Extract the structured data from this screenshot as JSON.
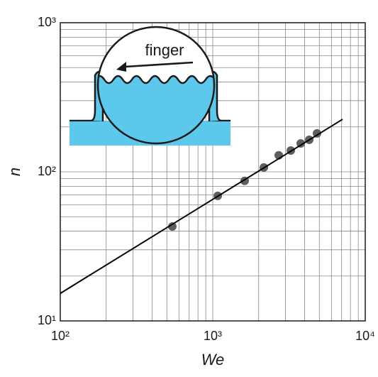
{
  "chart_data": {
    "type": "scatter",
    "x_label": "We",
    "y_label": "n",
    "annotations": [
      "finger"
    ],
    "log_x": true,
    "log_y": true,
    "grid": true,
    "xlim": [
      100,
      10000
    ],
    "xticks": [
      {
        "value": 100,
        "label": "10²"
      },
      {
        "value": 1000,
        "label": "10³"
      },
      {
        "value": 10000,
        "label": "10⁴"
      }
    ],
    "xminorticks": [
      200,
      300,
      400,
      500,
      600,
      700,
      800,
      900,
      2000,
      3000,
      4000,
      5000,
      6000,
      7000,
      8000,
      9000
    ],
    "ylim": [
      10,
      1000
    ],
    "yticks": [
      {
        "value": 10,
        "label": "10¹"
      },
      {
        "value": 100,
        "label": "10²"
      },
      {
        "value": 1000,
        "label": "10³"
      }
    ],
    "yminorticks": [
      20,
      30,
      40,
      50,
      60,
      70,
      80,
      90,
      200,
      300,
      400,
      500,
      600,
      700,
      800,
      900
    ],
    "series": [
      {
        "mode": "markers",
        "color": "#5e5e5e",
        "x": [
          543,
          1078,
          1619,
          2163,
          2708,
          3250,
          3775,
          4292,
          4827
        ],
        "values": [
          43,
          69,
          87,
          107,
          129,
          139,
          155,
          164,
          181
        ]
      },
      {
        "mode": "line",
        "color": "#000000",
        "x": [
          100,
          7100
        ],
        "values": [
          15.3,
          225
        ]
      }
    ]
  }
}
